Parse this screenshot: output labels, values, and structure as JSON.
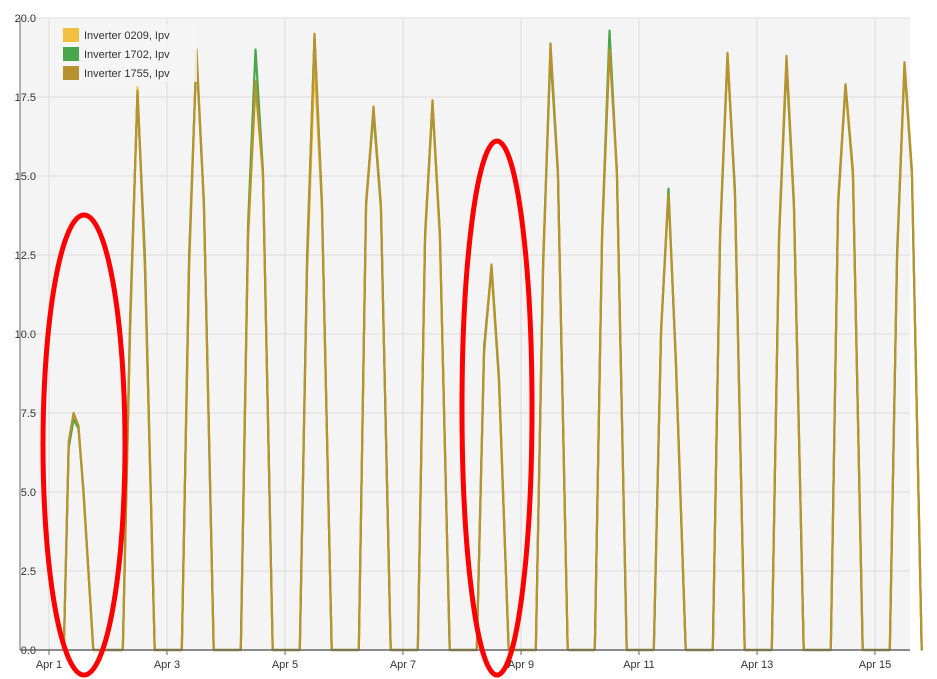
{
  "colors": {
    "background": "#f4f4f4",
    "grid": "#dcdcdc",
    "axis": "#666666",
    "highlight": "#ff0000"
  },
  "annotations": [
    {
      "shape": "ellipse",
      "color": "#ff0000",
      "around": "Apr 1"
    },
    {
      "shape": "ellipse",
      "color": "#ff0000",
      "around": "Apr 8"
    }
  ],
  "chart_data": {
    "type": "line",
    "x_axis": {
      "type": "date",
      "range": [
        "Apr 1",
        "Apr 16"
      ],
      "ticks": [
        "Apr 1",
        "Apr 3",
        "Apr 5",
        "Apr 7",
        "Apr 9",
        "Apr 11",
        "Apr 13",
        "Apr 15"
      ]
    },
    "y_axis": {
      "range": [
        0,
        20
      ],
      "ticks": [
        "0.0",
        "2.5",
        "5.0",
        "7.5",
        "10.0",
        "12.5",
        "15.0",
        "17.5",
        "20.0"
      ]
    },
    "grid": true,
    "legend": {
      "placement": "top-left",
      "entries": [
        "Inverter 0209, Ipv",
        "Inverter 1702, Ipv",
        "Inverter 1755, Ipv"
      ]
    },
    "series": [
      {
        "name": "Inverter 0209, Ipv",
        "color": "#f0c040",
        "x": [
          "Apr 1 06:00",
          "Apr 1 08:00",
          "Apr 1 10:00",
          "Apr 1 12:00",
          "Apr 1 14:00",
          "Apr 1 18:00",
          "Apr 2 06:00",
          "Apr 2 09:00",
          "Apr 2 12:00",
          "Apr 2 15:00",
          "Apr 2 19:00",
          "Apr 3 06:00",
          "Apr 3 09:00",
          "Apr 3 12:00",
          "Apr 3 15:00",
          "Apr 3 19:00",
          "Apr 4 06:00",
          "Apr 4 09:00",
          "Apr 4 12:00",
          "Apr 4 15:00",
          "Apr 4 19:00",
          "Apr 5 06:00",
          "Apr 5 09:00",
          "Apr 5 12:00",
          "Apr 5 15:00",
          "Apr 5 19:00",
          "Apr 6 06:00",
          "Apr 6 09:00",
          "Apr 6 12:00",
          "Apr 6 15:00",
          "Apr 6 19:00",
          "Apr 7 06:00",
          "Apr 7 09:00",
          "Apr 7 12:00",
          "Apr 7 15:00",
          "Apr 7 19:00",
          "Apr 8 06:00",
          "Apr 8 09:00",
          "Apr 8 12:00",
          "Apr 8 15:00",
          "Apr 8 19:00",
          "Apr 9 06:00",
          "Apr 9 09:00",
          "Apr 9 12:00",
          "Apr 9 15:00",
          "Apr 9 19:00",
          "Apr 10 06:00",
          "Apr 10 09:00",
          "Apr 10 12:00",
          "Apr 10 15:00",
          "Apr 10 19:00",
          "Apr 11 06:00",
          "Apr 11 09:00",
          "Apr 11 12:00",
          "Apr 11 15:00",
          "Apr 11 19:00",
          "Apr 12 06:00",
          "Apr 12 09:00",
          "Apr 12 12:00",
          "Apr 12 15:00",
          "Apr 12 19:00",
          "Apr 13 06:00",
          "Apr 13 09:00",
          "Apr 13 12:00",
          "Apr 13 15:00",
          "Apr 13 19:00",
          "Apr 14 06:00",
          "Apr 14 09:00",
          "Apr 14 12:00",
          "Apr 14 15:00",
          "Apr 14 19:00",
          "Apr 15 06:00",
          "Apr 15 09:00",
          "Apr 15 12:00",
          "Apr 15 15:00",
          "Apr 15 19:00"
        ],
        "y": [
          0,
          6.5,
          7.4,
          7.0,
          5.0,
          0,
          0,
          10.0,
          17.8,
          12.0,
          0,
          0,
          12.0,
          18.9,
          14.0,
          0,
          0,
          13.0,
          17.8,
          15.0,
          0,
          0,
          12.0,
          18.5,
          14.0,
          0,
          0,
          14.0,
          17.0,
          14.0,
          0,
          0,
          13.0,
          17.2,
          13.0,
          0,
          0,
          9.5,
          12.0,
          8.5,
          0,
          0,
          12.0,
          19.0,
          15.0,
          0,
          0,
          13.0,
          19.2,
          15.0,
          0,
          0,
          10.0,
          14.5,
          9.0,
          0,
          0,
          13.0,
          18.7,
          14.5,
          0,
          0,
          13.0,
          18.5,
          14.0,
          0,
          0,
          14.0,
          17.8,
          15.0,
          0,
          0,
          12.5,
          18.4,
          15.0,
          0
        ]
      },
      {
        "name": "Inverter 1702, Ipv",
        "color": "#4aa64a",
        "x": [
          "Apr 1 06:00",
          "Apr 1 08:00",
          "Apr 1 10:00",
          "Apr 1 12:00",
          "Apr 1 14:00",
          "Apr 1 18:00",
          "Apr 2 06:00",
          "Apr 2 09:00",
          "Apr 2 12:00",
          "Apr 2 15:00",
          "Apr 2 19:00",
          "Apr 3 06:00",
          "Apr 3 09:00",
          "Apr 3 12:00",
          "Apr 3 15:00",
          "Apr 3 19:00",
          "Apr 4 06:00",
          "Apr 4 09:00",
          "Apr 4 12:00",
          "Apr 4 15:00",
          "Apr 4 19:00",
          "Apr 5 06:00",
          "Apr 5 09:00",
          "Apr 5 12:00",
          "Apr 5 15:00",
          "Apr 5 19:00",
          "Apr 6 06:00",
          "Apr 6 09:00",
          "Apr 6 12:00",
          "Apr 6 15:00",
          "Apr 6 19:00",
          "Apr 7 06:00",
          "Apr 7 09:00",
          "Apr 7 12:00",
          "Apr 7 15:00",
          "Apr 7 19:00",
          "Apr 8 06:00",
          "Apr 8 09:00",
          "Apr 8 12:00",
          "Apr 8 15:00",
          "Apr 8 19:00",
          "Apr 9 06:00",
          "Apr 9 09:00",
          "Apr 9 12:00",
          "Apr 9 15:00",
          "Apr 9 19:00",
          "Apr 10 06:00",
          "Apr 10 09:00",
          "Apr 10 12:00",
          "Apr 10 15:00",
          "Apr 10 19:00",
          "Apr 11 06:00",
          "Apr 11 09:00",
          "Apr 11 12:00",
          "Apr 11 15:00",
          "Apr 11 19:00",
          "Apr 12 06:00",
          "Apr 12 09:00",
          "Apr 12 12:00",
          "Apr 12 15:00",
          "Apr 12 19:00",
          "Apr 13 06:00",
          "Apr 13 09:00",
          "Apr 13 12:00",
          "Apr 13 15:00",
          "Apr 13 19:00",
          "Apr 14 06:00",
          "Apr 14 09:00",
          "Apr 14 12:00",
          "Apr 14 15:00",
          "Apr 14 19:00",
          "Apr 15 06:00",
          "Apr 15 09:00",
          "Apr 15 12:00",
          "Apr 15 15:00",
          "Apr 15 19:00"
        ],
        "y": [
          0,
          6.4,
          7.3,
          7.0,
          5.1,
          0,
          0,
          10.5,
          17.6,
          12.5,
          0,
          0,
          12.5,
          18.8,
          14.2,
          0,
          0,
          13.5,
          19.0,
          15.2,
          0,
          0,
          12.5,
          19.4,
          14.2,
          0,
          0,
          14.2,
          17.0,
          14.0,
          0,
          0,
          13.2,
          17.3,
          13.2,
          0,
          0,
          9.6,
          12.1,
          8.6,
          0,
          0,
          12.3,
          18.9,
          15.1,
          0,
          0,
          13.2,
          19.6,
          15.1,
          0,
          0,
          10.1,
          14.6,
          9.1,
          0,
          0,
          13.1,
          18.8,
          14.6,
          0,
          0,
          13.1,
          18.6,
          14.1,
          0,
          0,
          14.1,
          17.9,
          15.1,
          0,
          0,
          12.6,
          18.5,
          15.1,
          0
        ]
      },
      {
        "name": "Inverter 1755, Ipv",
        "color": "#b8922e",
        "x": [
          "Apr 1 06:00",
          "Apr 1 08:00",
          "Apr 1 10:00",
          "Apr 1 12:00",
          "Apr 1 14:00",
          "Apr 1 18:00",
          "Apr 2 06:00",
          "Apr 2 09:00",
          "Apr 2 12:00",
          "Apr 2 15:00",
          "Apr 2 19:00",
          "Apr 3 06:00",
          "Apr 3 09:00",
          "Apr 3 12:00",
          "Apr 3 15:00",
          "Apr 3 19:00",
          "Apr 4 06:00",
          "Apr 4 09:00",
          "Apr 4 12:00",
          "Apr 4 15:00",
          "Apr 4 19:00",
          "Apr 5 06:00",
          "Apr 5 09:00",
          "Apr 5 12:00",
          "Apr 5 15:00",
          "Apr 5 19:00",
          "Apr 6 06:00",
          "Apr 6 09:00",
          "Apr 6 12:00",
          "Apr 6 15:00",
          "Apr 6 19:00",
          "Apr 7 06:00",
          "Apr 7 09:00",
          "Apr 7 12:00",
          "Apr 7 15:00",
          "Apr 7 19:00",
          "Apr 8 06:00",
          "Apr 8 09:00",
          "Apr 8 12:00",
          "Apr 8 15:00",
          "Apr 8 19:00",
          "Apr 9 06:00",
          "Apr 9 09:00",
          "Apr 9 12:00",
          "Apr 9 15:00",
          "Apr 9 19:00",
          "Apr 10 06:00",
          "Apr 10 09:00",
          "Apr 10 12:00",
          "Apr 10 15:00",
          "Apr 10 19:00",
          "Apr 11 06:00",
          "Apr 11 09:00",
          "Apr 11 12:00",
          "Apr 11 15:00",
          "Apr 11 19:00",
          "Apr 12 06:00",
          "Apr 12 09:00",
          "Apr 12 12:00",
          "Apr 12 15:00",
          "Apr 12 19:00",
          "Apr 13 06:00",
          "Apr 13 09:00",
          "Apr 13 12:00",
          "Apr 13 15:00",
          "Apr 13 19:00",
          "Apr 14 06:00",
          "Apr 14 09:00",
          "Apr 14 12:00",
          "Apr 14 15:00",
          "Apr 14 19:00",
          "Apr 15 06:00",
          "Apr 15 09:00",
          "Apr 15 12:00",
          "Apr 15 15:00",
          "Apr 15 19:00"
        ],
        "y": [
          0,
          6.6,
          7.5,
          7.1,
          5.0,
          0,
          0,
          10.2,
          17.7,
          12.2,
          0,
          0,
          12.2,
          19.0,
          14.1,
          0,
          0,
          13.2,
          18.0,
          15.1,
          0,
          0,
          12.2,
          19.5,
          14.1,
          0,
          0,
          14.1,
          17.2,
          14.1,
          0,
          0,
          13.1,
          17.4,
          13.1,
          0,
          0,
          9.4,
          12.2,
          8.7,
          0,
          0,
          12.1,
          19.2,
          15.2,
          0,
          0,
          13.1,
          19.0,
          15.2,
          0,
          0,
          10.2,
          14.4,
          9.2,
          0,
          0,
          13.2,
          18.9,
          14.4,
          0,
          0,
          13.2,
          18.8,
          14.2,
          0,
          0,
          14.2,
          17.9,
          15.2,
          0,
          0,
          12.4,
          18.6,
          15.2,
          0
        ]
      }
    ]
  }
}
